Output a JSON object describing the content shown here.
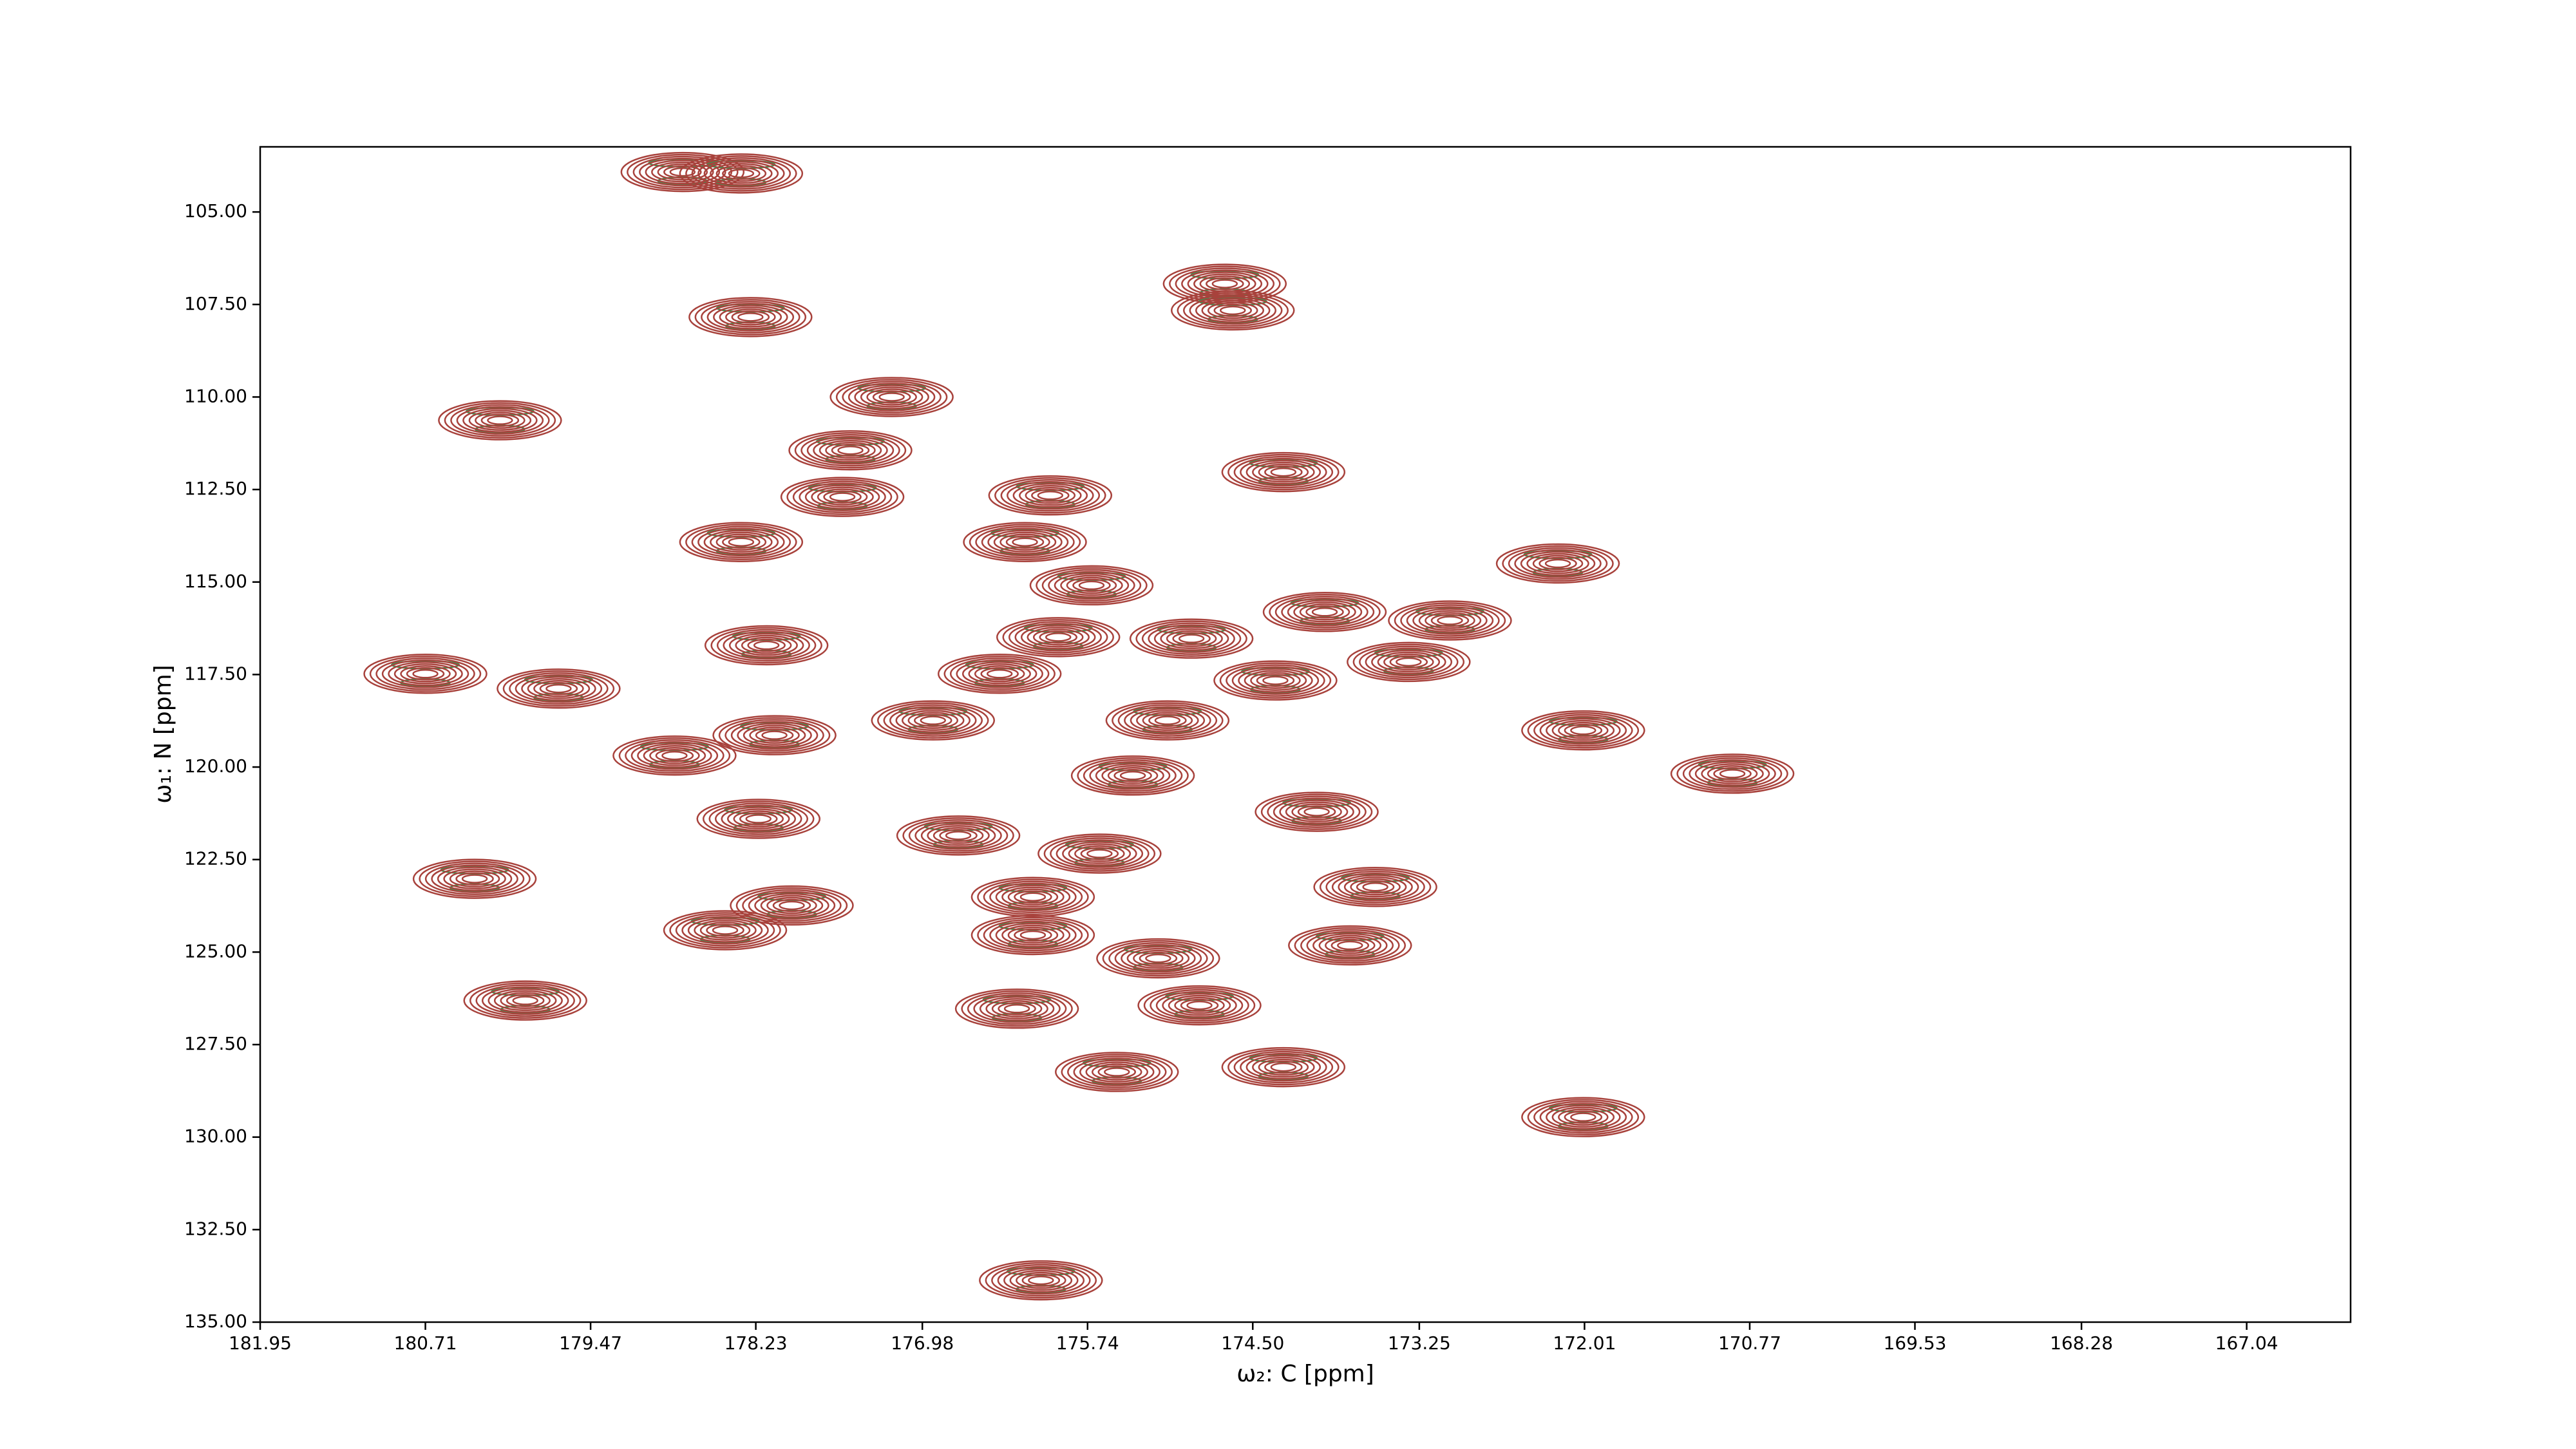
{
  "chart_data": {
    "type": "contour",
    "xlabel": "ω₂: C [ppm]",
    "ylabel": "ω₁: N [ppm]",
    "xlim": [
      181.95,
      166.26
    ],
    "ylim": [
      135,
      103.24
    ],
    "xticks": [
      181.95,
      180.71,
      179.47,
      178.23,
      176.98,
      175.74,
      {
        "value": 174.5,
        "label": "174.50"
      },
      173.25,
      172.01,
      170.77,
      169.53,
      168.28,
      167.04
    ],
    "yticks": [
      {
        "value": 105,
        "label": "105.00"
      },
      {
        "value": 107.5,
        "label": "107.50"
      },
      {
        "value": 110,
        "label": "110.00"
      },
      {
        "value": 112.5,
        "label": "112.50"
      },
      {
        "value": 115,
        "label": "115.00"
      },
      {
        "value": 117.5,
        "label": "117.50"
      },
      {
        "value": 120,
        "label": "120.00"
      },
      {
        "value": 122.5,
        "label": "122.50"
      },
      {
        "value": 125,
        "label": "125.00"
      },
      {
        "value": 127.5,
        "label": "127.50"
      },
      {
        "value": 130,
        "label": "130.00"
      },
      {
        "value": 132.5,
        "label": "132.50"
      },
      {
        "value": 135,
        "label": "135.00"
      }
    ],
    "color": "#a8423c",
    "negative_color": "#3f8f4f",
    "x": [
      178.78,
      178.34,
      178.27,
      180.15,
      177.21,
      174.71,
      174.65,
      174.27,
      177.52,
      177.58,
      178.34,
      176.02,
      176.21,
      175.71,
      172.21,
      173.02,
      173.96,
      178.15,
      175.96,
      174.96,
      173.33,
      180.71,
      179.71,
      176.4,
      174.33,
      175.14,
      176.9,
      178.09,
      178.84,
      172.02,
      170.9,
      175.4,
      174.02,
      178.21,
      176.71,
      175.65,
      180.34,
      173.58,
      177.96,
      176.15,
      178.46,
      176.15,
      173.77,
      179.96,
      176.27,
      174.9,
      175.52,
      174.27,
      172.02,
      176.09,
      175.21
    ],
    "y": [
      103.92,
      103.96,
      107.84,
      110.63,
      110.0,
      106.94,
      107.66,
      112.03,
      111.44,
      112.7,
      113.92,
      112.66,
      113.92,
      115.09,
      114.5,
      116.04,
      115.81,
      116.71,
      116.49,
      116.53,
      117.16,
      117.48,
      117.88,
      117.48,
      117.66,
      118.74,
      118.74,
      119.14,
      119.69,
      119.01,
      120.18,
      120.23,
      121.21,
      121.4,
      121.85,
      122.34,
      123.02,
      123.24,
      123.74,
      123.51,
      124.41,
      124.54,
      124.82,
      126.31,
      126.53,
      126.44,
      128.24,
      128.11,
      129.46,
      133.87,
      125.17
    ]
  }
}
